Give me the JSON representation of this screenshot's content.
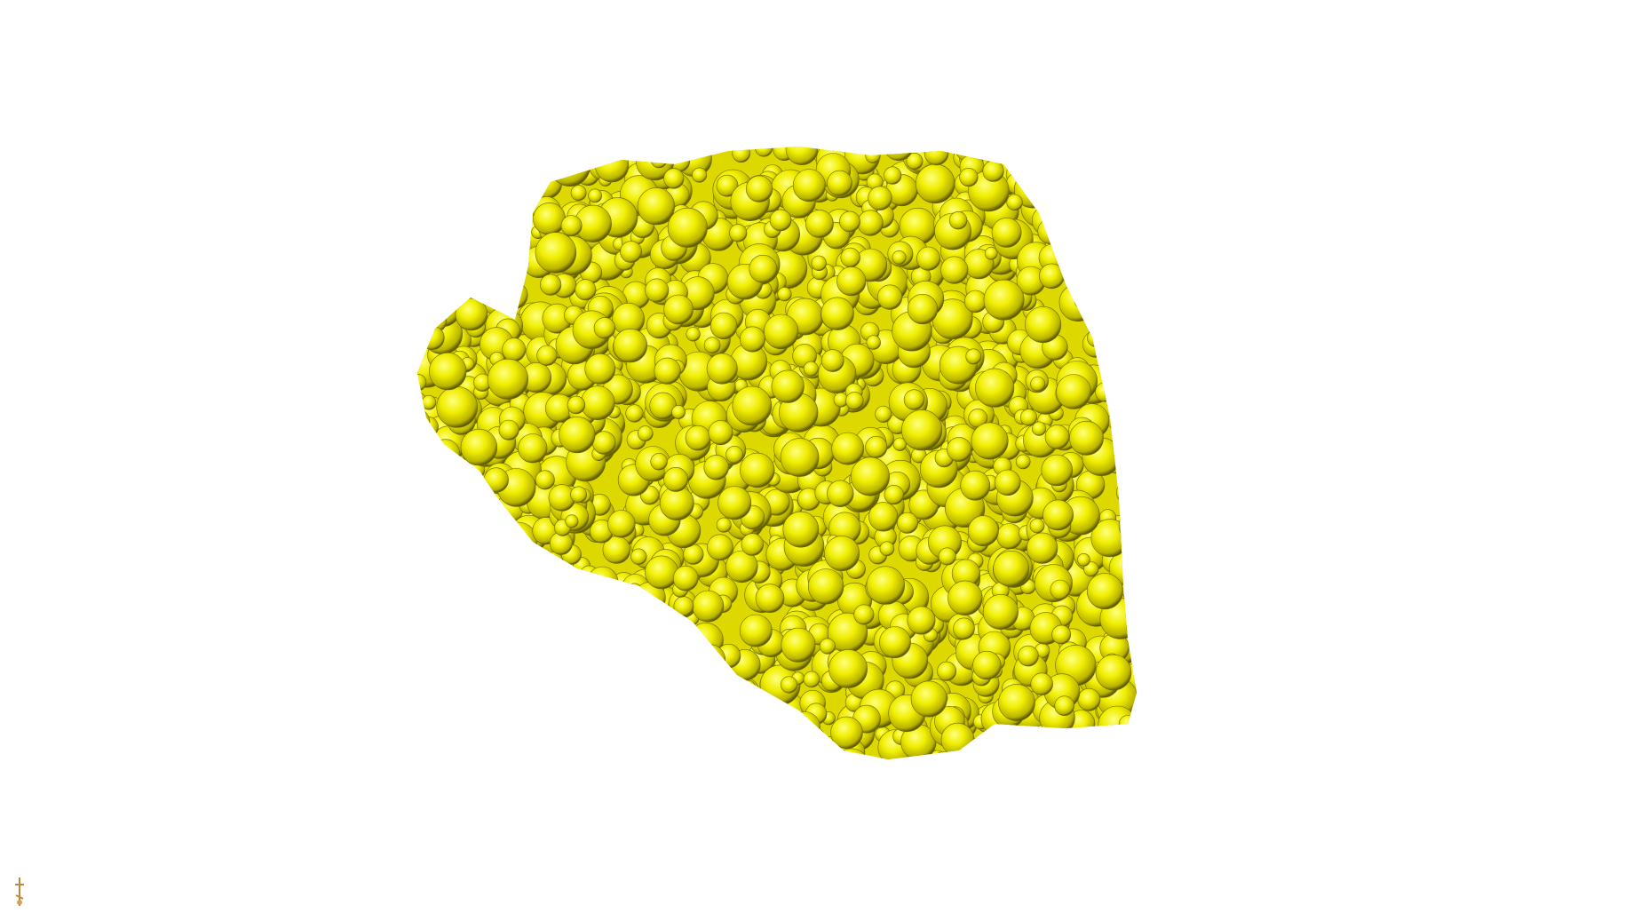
{
  "viewer": {
    "background_color": "#ffffff",
    "surface_color": "#f2f200",
    "surface_shadow_color": "#6e6a00",
    "surface_highlight_color": "#ffff66",
    "model_icon": "volume-isosurface",
    "axis_icon": "orientation-axes-icon",
    "axis_icon_color": "#c08a3e"
  }
}
